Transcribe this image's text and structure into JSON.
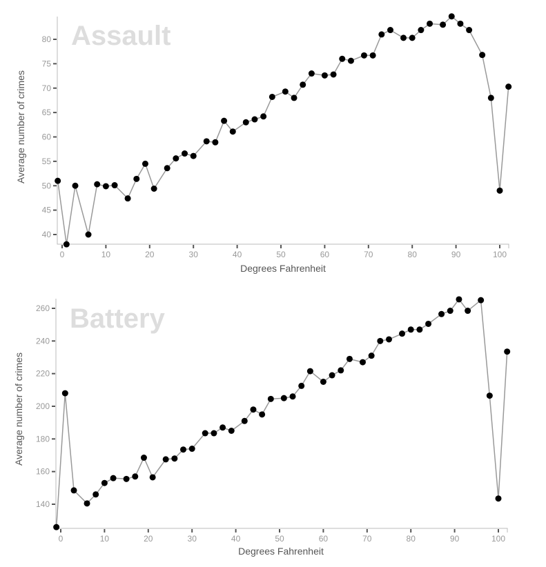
{
  "chart_data": [
    {
      "type": "line",
      "title": "Assault",
      "xlabel": "Degrees Fahrenheit",
      "ylabel": "Average number of crimes",
      "xlim": [
        -1,
        102
      ],
      "ylim": [
        38,
        84.7
      ],
      "xticks": [
        0,
        10,
        20,
        30,
        40,
        50,
        60,
        70,
        80,
        90,
        100
      ],
      "yticks": [
        40,
        45,
        50,
        55,
        60,
        65,
        70,
        75,
        80
      ],
      "grid": false,
      "legend": null,
      "x": [
        -1,
        1,
        3,
        6,
        8,
        10,
        12,
        15,
        17,
        19,
        21,
        24,
        26,
        28,
        30,
        33,
        35,
        37,
        39,
        42,
        44,
        46,
        48,
        51,
        53,
        55,
        57,
        60,
        62,
        64,
        66,
        69,
        71,
        73,
        75,
        78,
        80,
        82,
        84,
        87,
        89,
        91,
        93,
        96,
        98,
        100,
        102
      ],
      "values": [
        51.0,
        38.0,
        50.0,
        40.0,
        50.3,
        49.9,
        50.1,
        47.4,
        51.4,
        54.5,
        49.4,
        53.6,
        55.6,
        56.6,
        56.1,
        59.1,
        58.9,
        63.3,
        61.1,
        63.0,
        63.6,
        64.2,
        68.2,
        69.3,
        68.0,
        70.7,
        73.0,
        72.6,
        72.8,
        76.0,
        75.6,
        76.7,
        76.7,
        81.0,
        81.9,
        80.3,
        80.3,
        81.9,
        83.2,
        83.0,
        84.7,
        83.2,
        81.9,
        76.8,
        68.0,
        49.0,
        70.3
      ]
    },
    {
      "type": "line",
      "title": "Battery",
      "xlabel": "Degrees Fahrenheit",
      "ylabel": "Average number of crimes",
      "xlim": [
        -1,
        102
      ],
      "ylim": [
        126,
        266
      ],
      "xticks": [
        0,
        10,
        20,
        30,
        40,
        50,
        60,
        70,
        80,
        90,
        100
      ],
      "yticks": [
        140,
        160,
        180,
        200,
        220,
        240,
        260
      ],
      "grid": false,
      "legend": null,
      "x": [
        -1,
        1,
        3,
        6,
        8,
        10,
        12,
        15,
        17,
        19,
        21,
        24,
        26,
        28,
        30,
        33,
        35,
        37,
        39,
        42,
        44,
        46,
        48,
        51,
        53,
        55,
        57,
        60,
        62,
        64,
        66,
        69,
        71,
        73,
        75,
        78,
        80,
        82,
        84,
        87,
        89,
        91,
        93,
        96,
        98,
        100,
        102
      ],
      "values": [
        126,
        208,
        148.5,
        140.5,
        146,
        153,
        156,
        155.5,
        157,
        168.5,
        156.5,
        167.5,
        168,
        173.5,
        174,
        183.5,
        183.5,
        187,
        185,
        191,
        198,
        195,
        204.5,
        205,
        206,
        212.5,
        221.5,
        215,
        219,
        222,
        229,
        227,
        231,
        240,
        241,
        244.5,
        247,
        247,
        250.5,
        256.5,
        258.5,
        265.5,
        258.5,
        265,
        206.5,
        143.5,
        233.5
      ]
    }
  ],
  "charts": [
    {
      "title": "Assault",
      "xlabel": "Degrees Fahrenheit",
      "ylabel": "Average number of crimes"
    },
    {
      "title": "Battery",
      "xlabel": "Degrees Fahrenheit",
      "ylabel": "Average number of crimes"
    }
  ],
  "colors": {
    "dot": "#000000",
    "line": "#999999",
    "title": "#dddddd",
    "axis": "#bbbbbb",
    "tick_label": "#999999",
    "axis_title": "#555555"
  }
}
